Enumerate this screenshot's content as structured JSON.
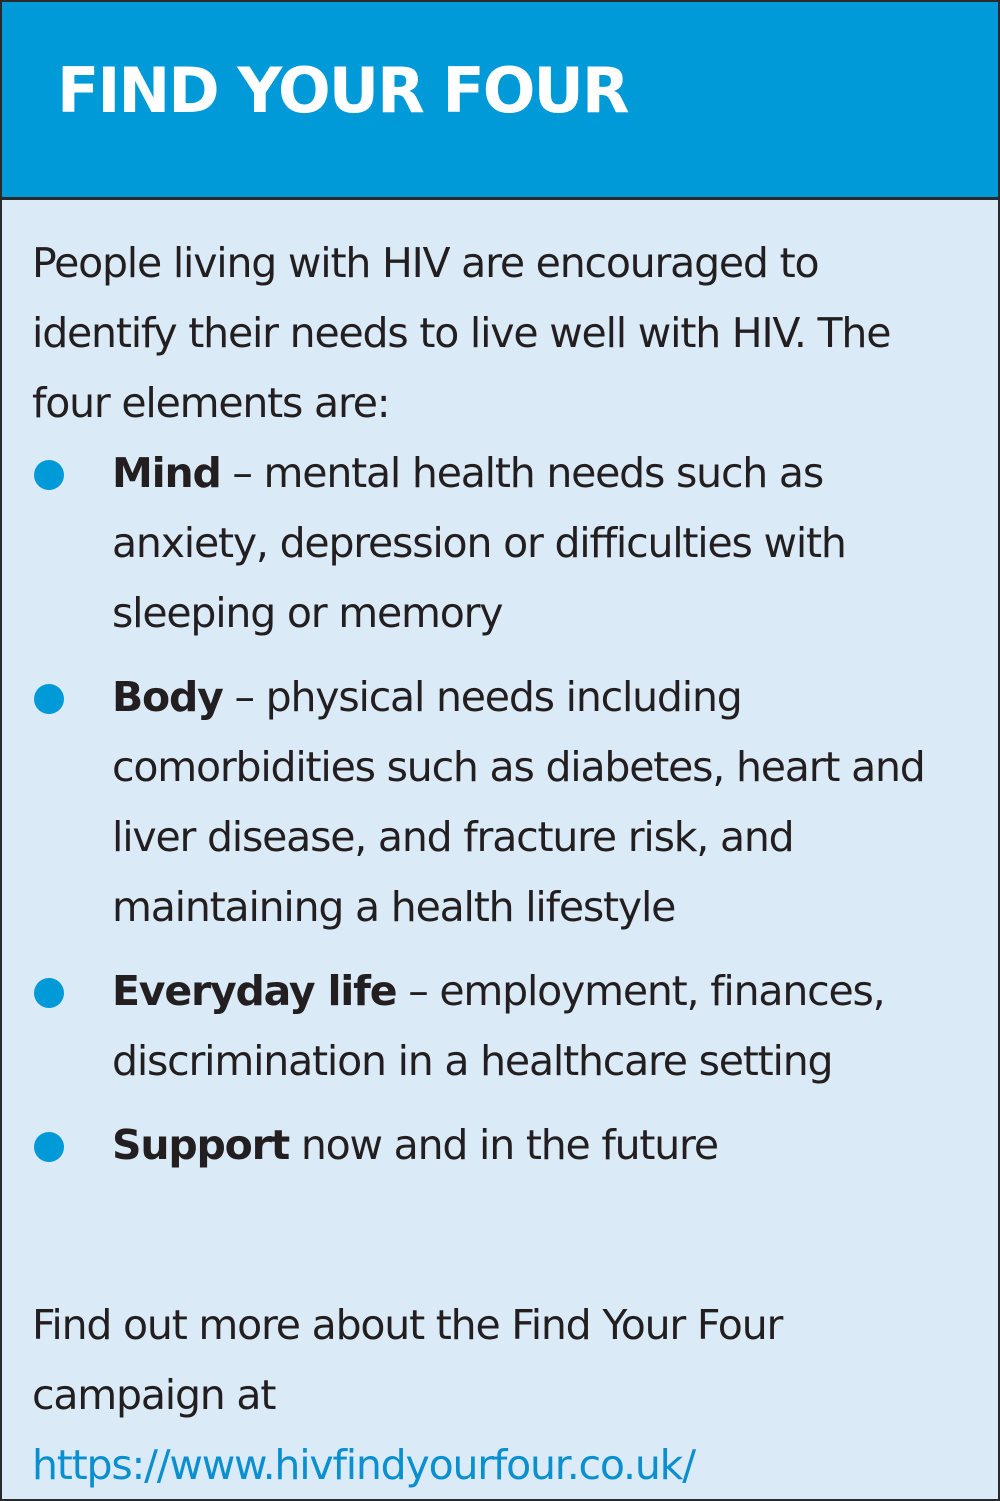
{
  "title": "FIND YOUR FOUR",
  "intro": "People living with HIV are encouraged to identify their needs to live well with HIV. The four elements are:",
  "items": [
    {
      "term": "Mind",
      "text": " – mental health needs such as anxiety, depression or difficulties with sleeping or memory"
    },
    {
      "term": "Body",
      "text": " – physical needs including comorbidities such as diabetes, heart and liver disease, and fracture risk, and maintaining a health lifestyle"
    },
    {
      "term": "Everyday life",
      "text": " – employment, finances, discrimination in a healthcare setting"
    },
    {
      "term": "Support",
      "text": " now and in the future"
    }
  ],
  "footer": "Find out more about the Find Your Four campaign at",
  "link": "https://www.hivfindyourfour.co.uk/",
  "colors": {
    "header": "#009ad9",
    "background": "#dbeaf7",
    "bullet": "#009ad9",
    "link": "#0a8fcf"
  }
}
